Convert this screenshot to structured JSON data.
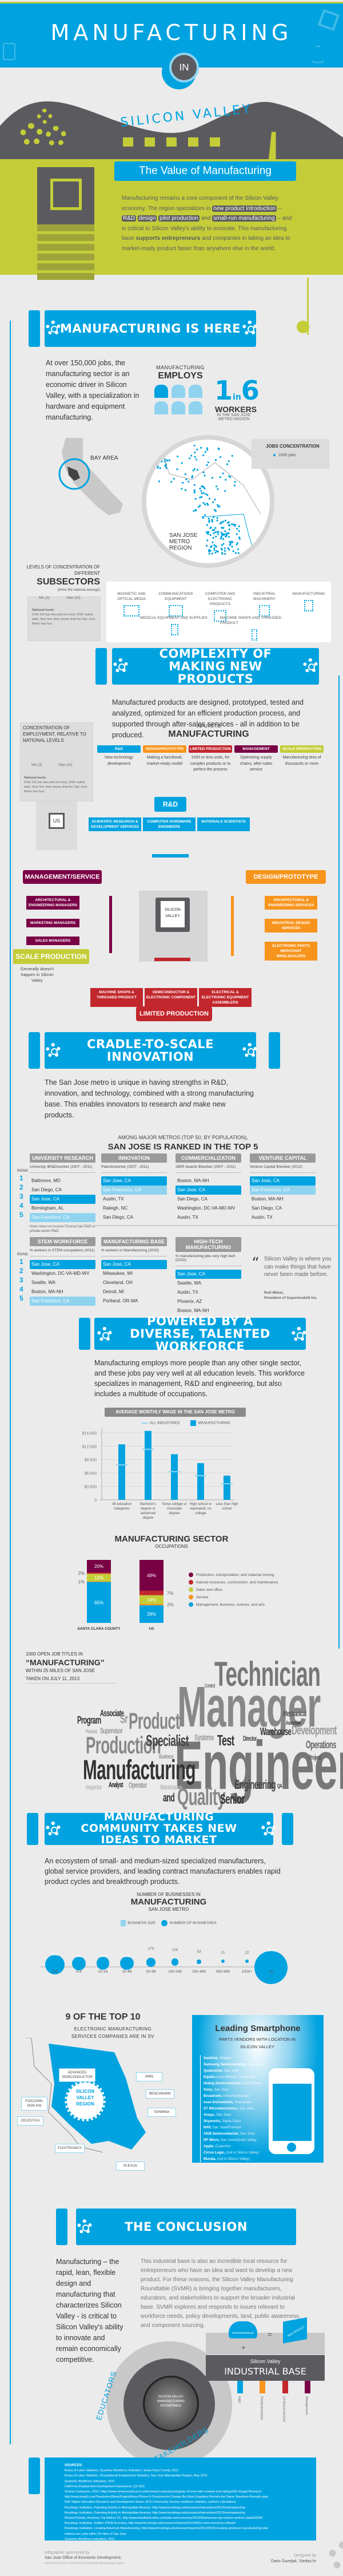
{
  "hero": {
    "title": "MANUFACTURING",
    "in": "IN",
    "subtitle": "SILICON VALLEY",
    "colors": {
      "blue": "#00a3e0",
      "lime": "#c4cd38",
      "dark": "#5b5b5f"
    }
  },
  "value": {
    "heading": "The Value of Manufacturing",
    "p1": "Manufacturing remains a core component of the Silicon Valley economy. The region specializes in",
    "hl1": "new product introduction",
    "dash": "–",
    "hl2": "R&D",
    "hl3": "design",
    "hl4": "pilot production",
    "and": "and",
    "hl5": "small-run manufacturing",
    "p2": "– and is critical to Silicon Valley's ability to innovate. This manufacturing base",
    "bold": "supports entrepreneurs",
    "p3": "and companies in taking an idea to market-ready product faster than anywhere else in the world."
  },
  "here": {
    "banner": "MANUFACTURING IS HERE",
    "text": "At over 150,000 jobs, the manufacturing sector is an economic driver in Silicon Valley, with a specialization in hardware and equipment manufacturing.",
    "employs_top": "MANUFACTURING",
    "employs": "EMPLOYS",
    "one": "1",
    "in": "in",
    "six": "6",
    "workers": "WORKERS",
    "region": "IN THE SAN JOSE METRO REGION",
    "bay_area": "BAY AREA",
    "san_jose": "SAN JOSE METRO REGION",
    "jobs_conc": "JOBS CONCENTRATION",
    "jobs_legend": "1000 jobs"
  },
  "subsectors": {
    "title_top": "LEVELS OF CONCENTRATION OF DIFFERENT",
    "title": "SUBSECTORS",
    "note": "(times the national average)",
    "min": "Min (2)",
    "max": "Max (32)",
    "national": "National levels",
    "national_note": "If the US has two jobs for every 1000 nation wide, then four dots means that the San Jose Metro has four.",
    "items": [
      {
        "label": "MAGNETIC AND OPTICAL MEDIA"
      },
      {
        "label": "COMMUNICATIONS EQUIPMENT"
      },
      {
        "label": "COMPUTER AND ELECTRONIC PRODUCTS"
      },
      {
        "label": "INDUSTRIAL MACHINERY"
      },
      {
        "label": "MANUFACTURING"
      },
      {
        "label": "MEDICAL EQUIPMENT AND SUPPLIES"
      },
      {
        "label": "MACHINE SHOPS AND THREADED PRODUCT"
      }
    ]
  },
  "complexity": {
    "banner": "COMPLEXITY OF MAKING NEW PRODUCTS",
    "text": "Manufactured products are designed, prototyped, tested and analyzed, optimized for an efficient production process, and supported through after-sales services - all in addition to be produced.",
    "conc_title": "CONCENTRATION OF EMPLOYMENT, RELATIVE TO NATIONAL LEVELS",
    "min": "Min (2)",
    "max": "Max (32)",
    "national": "National levels",
    "national_note": "If the US has two jobs for every 1000 nation wide, then four dots means that the San Jose Metro has four.",
    "us": "US",
    "inputs_top": "INPUTS TO",
    "inputs": "MANUFACTURING",
    "stages": [
      {
        "label": "R&D",
        "desc": "New technology development",
        "color": "#00a3e0"
      },
      {
        "label": "DESIGN/PROTOTYPE",
        "desc": "Making a functional, market-ready model",
        "color": "#f7941d"
      },
      {
        "label": "LIMITED PRODUCTION",
        "desc": "1000 or less units, for complex products or to perfect the process",
        "color": "#c1272d"
      },
      {
        "label": "MANAGEMENT",
        "desc": "Optimizing supply chains, after-sales service",
        "color": "#7a0046"
      },
      {
        "label": "SCALE PRODUCTION",
        "desc": "Manufacturing tens of thousands or more",
        "color": "#c4cd38"
      }
    ],
    "rd": {
      "label": "R&D",
      "items": [
        "SCIENTIFIC RESEARCH & DEVELOPMENT SERVICES",
        "COMPUTER HARDWARE ENGINEERS",
        "MATERIALS SCIENTISTS"
      ]
    },
    "mgmt": {
      "label": "MANAGEMENT/SERVICE",
      "items": [
        "ARCHITECTURAL & ENGINEERING MANAGERS",
        "MARKETING MANAGERS",
        "SALES MANAGERS"
      ]
    },
    "design": {
      "label": "DESIGN/PROTOTYPE",
      "items": [
        "ARCHITECTURAL & ENGINEERING SERVICES",
        "INDUSTRIAL DESIGN SERVICES",
        "ELECTRONIC PARTS MERCHANT WHOLESALERS"
      ]
    },
    "chip": "SILICON VALLEY",
    "scale": {
      "label": "SCALE PRODUCTION",
      "note": "Generally doesn't happen in Silicon Valley"
    },
    "limited": {
      "label": "LIMITED PRODUCTION",
      "items": [
        "MACHINE SHOPS & THREADED PRODUCT",
        "SEMICONDUCTOR & ELECTRONIC COMPONENT",
        "ELECTRICAL & ELECTRONIC EQUIPMENT ASSEMBLERS"
      ]
    }
  },
  "cradle": {
    "banner": "CRADLE-TO-SCALE INNOVATION",
    "text_a": "The San Jose metro is unique in having strengths in R&D, innovation, and technology, combined with a strong manufacturing base. This enables innovators to research",
    "text_em": "and",
    "text_b": "make new products.",
    "among": "AMONG MAJOR METROS (TOP 50, BY POPULATION),",
    "ranked": "SAN JOSE IS RANKED IN THE TOP 5",
    "rank_label": "RANK",
    "ranks": [
      "1",
      "2",
      "3",
      "4",
      "5"
    ],
    "row1": [
      {
        "title": "UNIVERSITY RESEARCH",
        "sub": "University $R&D/worker (2007 - 2011)",
        "items": [
          "Baltimore, MD",
          "San Diego, CA",
          "San Jose, CA",
          "Birmingham, AL",
          "San Francisco, CA"
        ],
        "hl": [
          null,
          null,
          "t",
          null,
          "l"
        ],
        "note": "Note: does not include Federal Lab R&D or private-sector R&D"
      },
      {
        "title": "INNOVATION",
        "sub": "Patents/worker (2007 - 2011)",
        "items": [
          "San Jose, CA",
          "San Francisco, CA",
          "Austin, TX",
          "Raleigh, NC",
          "San Diego, CA"
        ],
        "hl": [
          "t",
          "l",
          null,
          null,
          null
        ]
      },
      {
        "title": "COMMERCIALIZATON",
        "sub": "SBIR Awards $/worker (2007 - 2011)",
        "items": [
          "Boston, MA-NH",
          "San Jose, CA",
          "San Diego, CA",
          "Washington, DC-VA-MD-WV",
          "Austin, TX"
        ],
        "hl": [
          null,
          "t",
          null,
          null,
          null
        ]
      },
      {
        "title": "VENTURE CAPITAL",
        "sub": "Venture Capital $/worker (2012)",
        "items": [
          "San Jose, CA",
          "San Francisco, CA",
          "Boston, MA-NH",
          "San Diego, CA",
          "Austin, TX"
        ],
        "hl": [
          "t",
          "l",
          null,
          null,
          null
        ]
      }
    ],
    "row2": [
      {
        "title": "STEM WORKFORCE",
        "sub": "% workers in STEM occupations (2011)",
        "items": [
          "San Jose, CA",
          "Washington, DC-VA-MD-WV",
          "Seattle, WA",
          "Boston, MA-NH",
          "San Francisco, CA"
        ],
        "hl": [
          "t",
          null,
          null,
          null,
          "l"
        ]
      },
      {
        "title": "MANUFACTURING BASE",
        "sub": "% workers in Manufacturing (2010)",
        "items": [
          "San Jose, CA",
          "Milwaukee, WI",
          "Cleveland, OH",
          "Detroit, MI",
          "Portland, OR-WA"
        ],
        "hl": [
          "t",
          null,
          null,
          null,
          null
        ]
      },
      {
        "title": "HIGH-TECH MANUFACTURING",
        "sub": "% manufacturing jobs very high tech (2010)",
        "items": [
          "San Jose, CA",
          "Seattle, WA",
          "Austin, TX",
          "Phoenix, AZ",
          "Boston, MA-NH"
        ],
        "hl": [
          "t",
          null,
          null,
          null,
          null
        ]
      }
    ],
    "quote": "Silicon Valley is where you can make things that have never been made before.",
    "quote_author": "Rolf Milesi,",
    "quote_role": "President of Supermodelli Inc."
  },
  "workforce": {
    "banner": "POWERED BY A DIVERSE, TALENTED WORKFORCE",
    "text": "Manufacturing employs more people than any other single sector, and these jobs pay very well at all education levels. This workforce specializes in management, R&D and engineering, but also includes a multitude of occupations."
  },
  "chart_data": [
    {
      "type": "bar",
      "title": "AVERAGE MONTHLY WAGE IN THE SAN JOSE METRO",
      "categories": [
        "All education categories",
        "Bachelor's degree or advanced degree",
        "Some college or Associate degree",
        "High school or equivalent, no college",
        "Less than high school"
      ],
      "series": [
        {
          "name": "MANUFACTURING",
          "values": [
            12400,
            15400,
            10200,
            8200,
            5400
          ],
          "color": "#00a3e0"
        },
        {
          "name": "ALL INDUSTRIES",
          "values": [
            7800,
            11300,
            6300,
            5400,
            3600
          ],
          "color": "#8fd3ef"
        }
      ],
      "yticks": [
        "0",
        "$3.000",
        "$6.000",
        "$9.000",
        "$12.000",
        "$15.000"
      ],
      "ylim": [
        0,
        16000
      ],
      "legend": "top-center"
    },
    {
      "type": "bar",
      "title": "MANUFACTURING SECTOR",
      "subtitle": "OCCUPATIONS",
      "categories": [
        "SANTA CLARA COUNTY",
        "US"
      ],
      "series": [
        {
          "name": "Management, business, science, and arts",
          "values": [
            65,
            28
          ],
          "color": "#00a3e0"
        },
        {
          "name": "Service",
          "values": [
            1,
            2
          ],
          "color": "#f7941d"
        },
        {
          "name": "Sales and office",
          "values": [
            12,
            14
          ],
          "color": "#c4cd38"
        },
        {
          "name": "Natural resources, construction, and maintenance",
          "values": [
            2,
            7
          ],
          "color": "#c1272d"
        },
        {
          "name": "Production, transportation, and material moving",
          "values": [
            20,
            49
          ],
          "color": "#7a0046"
        }
      ],
      "stacked": true,
      "legend": "right"
    },
    {
      "type": "scatter",
      "title": "MANUFACTURING",
      "subtitle_top": "NUMBER OF BUSINESSES IN",
      "subtitle": "SAN JOSE METRO",
      "legend_items": [
        "BUSINESS SIZE",
        "NUMBER OF BUSINESSES"
      ],
      "categories": [
        "0-4",
        "5-9",
        "10-19",
        "20-49",
        "50-99",
        "100-249",
        "250-499",
        "500-999",
        "1000+",
        "All"
      ],
      "values": [
        893,
        469,
        397,
        415,
        175,
        126,
        53,
        21,
        22,
        2571
      ]
    }
  ],
  "wordcloud": {
    "line1": "1000 OPEN JOB TITLES IN",
    "line2": "“MANUFACTURING”",
    "line3": "WITHIN 25 MILES OF SAN JOSE",
    "line4": "TAKEN ON JULY 11, 2013",
    "words": [
      "Technician",
      "Manager",
      "Engineer",
      "Manufacturing",
      "Production",
      "Product",
      "Specialist",
      "Quality",
      "Senior",
      "Engineering",
      "Associate",
      "Program",
      "Supervisor",
      "Sr",
      "Test",
      "Warehouse",
      "Development",
      "Operations",
      "Mechanical",
      "Director",
      "Systems",
      "Analyst",
      "Operator",
      "Inspector",
      "Maintenance",
      "and",
      "Project",
      "Business",
      "QA",
      "Assembler",
      "Control",
      "Process"
    ]
  },
  "community": {
    "banner": "MANUFACTURING COMMUNITY TAKES NEW IDEAS TO MARKET",
    "text": "An ecosystem of small- and medium-sized specialized manufacturers, global service providers, and leading contract manufacturers enables rapid product cycles and breakthrough products."
  },
  "ems": {
    "title": "9 OF THE TOP 10",
    "sub": "ELECTRONIC MANUFACTURING SERVICES COMPANIES ARE IN SV",
    "region": "SILICON VALLEY REGION",
    "companies": [
      "ADVANCED SEMICONDUCTOR",
      "JABIL",
      "BENCHMARK",
      "SANMINA",
      "FOXCONN, HON HAI",
      "CELESTICA",
      "FLEXTRONICS",
      "PLEXUS"
    ]
  },
  "smartphone": {
    "title": "Leading Smartphone",
    "sub": "PARTS VENDORS WITH LOCATION IN SILICON VALLEY",
    "vendors": [
      {
        "name": "SanDisk,",
        "loc": "Milpitas"
      },
      {
        "name": "Samsung Semiconductor,",
        "loc": "San Jose"
      },
      {
        "name": "Qualcomm,",
        "loc": "San Jose"
      },
      {
        "name": "Elpidia",
        "loc": "(now Micron), Sunnyvale"
      },
      {
        "name": "Dialog Semiconductor,",
        "loc": "Santa Clara"
      },
      {
        "name": "Sony,",
        "loc": "San Jose"
      },
      {
        "name": "Broadcom,",
        "loc": "Irvine/Sunnyvale"
      },
      {
        "name": "exas Instruments,",
        "loc": "Sunnyvale"
      },
      {
        "name": "ST Microelectronics,",
        "loc": "San Jose"
      },
      {
        "name": "Avago,",
        "loc": "San Jose"
      },
      {
        "name": "Skyworks,",
        "loc": "Santa Clara"
      },
      {
        "name": "NXP,",
        "loc": "San Jose/Fremont"
      },
      {
        "name": "AKM Semiconductor,",
        "loc": "San Jose"
      },
      {
        "name": "RF Micro,",
        "loc": "San Jose/Scotts Valley"
      },
      {
        "name": "Apple,",
        "loc": "Cupertino"
      },
      {
        "name": "Cirrus Logic,",
        "loc": "(not in Silicon Valley)"
      },
      {
        "name": "Murata,",
        "loc": "(not in Silicon Valley)"
      }
    ]
  },
  "conclusion": {
    "banner": "THE CONCLUSION",
    "left": "Manufacturing – the rapid, lean, flexible design and manufacturing that characterizes Silicon Valley - is critical to Silicon Valley's ability to innovate and remain economically competitive.",
    "right": "This industrial base is also an incredible local resource for entrepreneurs who have an idea and want to develop a new product. For these reasons, the Silicon Valley Manufacturing Roundtable (SVMR) is bringing together manufacturers, educators, and stakeholders to support the broader industrial base. SVMR explores and responds to issues relevant to workforce needs, policy developments, land, public awareness, and component sourcing.",
    "educators": "EDUCATORS",
    "stakeholders": "STAKEHOLDERS",
    "svmr": "SILICON VALLEY MANUFACTURING ROUNDTABLE",
    "entrepreneur": "ENTREPRENEUR",
    "new_product": "NEW PRODUCT",
    "plus": "+",
    "equals": "=",
    "base_top": "Silicon Valley",
    "base": "INDUSTRIAL BASE",
    "base_items": [
      {
        "label": "R&D",
        "color": "#00a3e0"
      },
      {
        "label": "Design/prototype",
        "color": "#f7941d"
      },
      {
        "label": "Limited production",
        "color": "#c1272d"
      },
      {
        "label": "Management",
        "color": "#7a0046"
      }
    ]
  },
  "sources": {
    "title": "SOURCES:",
    "items": [
      "Burea of Labor Statistics, Quarterly Workforce Indicators, Santa Clara County, 2012",
      "Burea of Labor Statistics, Occupational Employment Statistics, San Jose Metropolitan Region, May 2012",
      "Quarterly Workforce Indicators, 2011",
      "California Employment Development Department, Q3 2011",
      "Venture Outsource, 2012, https://www.ventureoutsource.com/contract-manufacturing/top-10-ems-odm-reviews-and-ratings/HIS iSuppli Research",
      "http://www.isuppli.com/Teardowns/News/Pages/Many-iPhone-5-Components-Change-But-Most-Suppliers-Remain-the-Same-Teardown-Reveals.aspx",
      "NSF Higher Education Research and Development Series, ACS Community Survery workforce statistics, author's calculations",
      "Brookings Institution, Patenting Activity in Metropolitan America: http://www.brookings.edu/research/interactives/2013/metropatenting",
      "Brookings Institution, Patenting Activity in Metropolitan America: http://www.brookings.edu/research/interactives/2013/metropatenting",
      "Richard Florida, Americas Top Metros VC, http://www.theatlanticcities.com/jobs-and-economy/2013/06/americas-top-metros-venture-capital/3284/",
      "Brookings Institution, Hidden STEM Economy, http://www.brookings.edu/research/reports/2013/06/10-stem-economy-rothwell",
      "Brookings Institution, Locating American Manufacturing, http://www.brookings.edu/research/reports/2012/05/09-locating-american-manufacturing-wial",
      "Indeed.com, jobs within 25 miles of San Jose",
      "Quarterly Workforce Indicators, 2011"
    ]
  },
  "footer": {
    "sponsored": "Infographic sponsored by",
    "sponsor": "San Jose Office of Economic Development,",
    "sponsor_links": "sjeconomy.com; economic.development@sanjoseca.gov",
    "designed": "Designed by",
    "designer": "Dario Šuveljak, Stedas.hr"
  }
}
